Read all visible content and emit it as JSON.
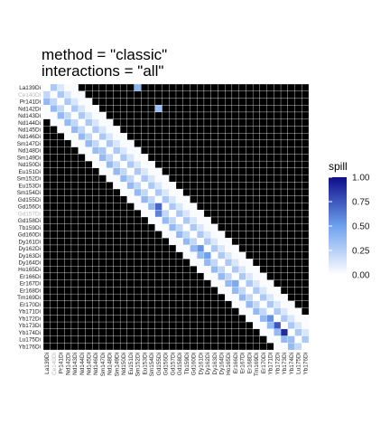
{
  "title": {
    "line1": "method = \"classic\"",
    "line2": "interactions = \"all\""
  },
  "legend": {
    "title": "spill",
    "ticks": [
      "1.00",
      "0.75",
      "0.50",
      "0.25",
      "0.00"
    ],
    "colors": {
      "low": "#ffffff",
      "mid": "#6ea1ef",
      "high": "#0d0d8a",
      "missing": "#000000"
    }
  },
  "chart_data": {
    "type": "heatmap",
    "value_range": [
      0,
      1
    ],
    "channels": [
      "La139Di",
      "Ce140Di",
      "Pr141Di",
      "Nd142Di",
      "Nd143Di",
      "Nd144Di",
      "Nd145Di",
      "Nd146Di",
      "Sm147Di",
      "Nd148Di",
      "Sm149Di",
      "Nd150Di",
      "Eu151Di",
      "Sm152Di",
      "Eu153Di",
      "Sm154Di",
      "Gd155Di",
      "Gd156Di",
      "Gd157Di",
      "Gd158Di",
      "Tb159Di",
      "Gd160Di",
      "Dy161Di",
      "Dy162Di",
      "Dy163Di",
      "Dy164Di",
      "Ho165Di",
      "Er166Di",
      "Er167Di",
      "Er168Di",
      "Tm169Di",
      "Er170Di",
      "Yb171Di",
      "Yb172Di",
      "Yb173Di",
      "Yb174Di",
      "Lu175Di",
      "Yb176Di"
    ],
    "gray_labels": {
      "rows": [
        "Ce140Di",
        "Gd157Di"
      ],
      "cols": [
        "Ce140Di"
      ]
    },
    "grid": [
      "k..........................................",
      "kkkkkkkkkkkkkkkkkkkkkkkkkkkkkkkkkkkkkkkkkkk",
      ".k...........................................",
      "..k.........................................."
    ]
  }
}
